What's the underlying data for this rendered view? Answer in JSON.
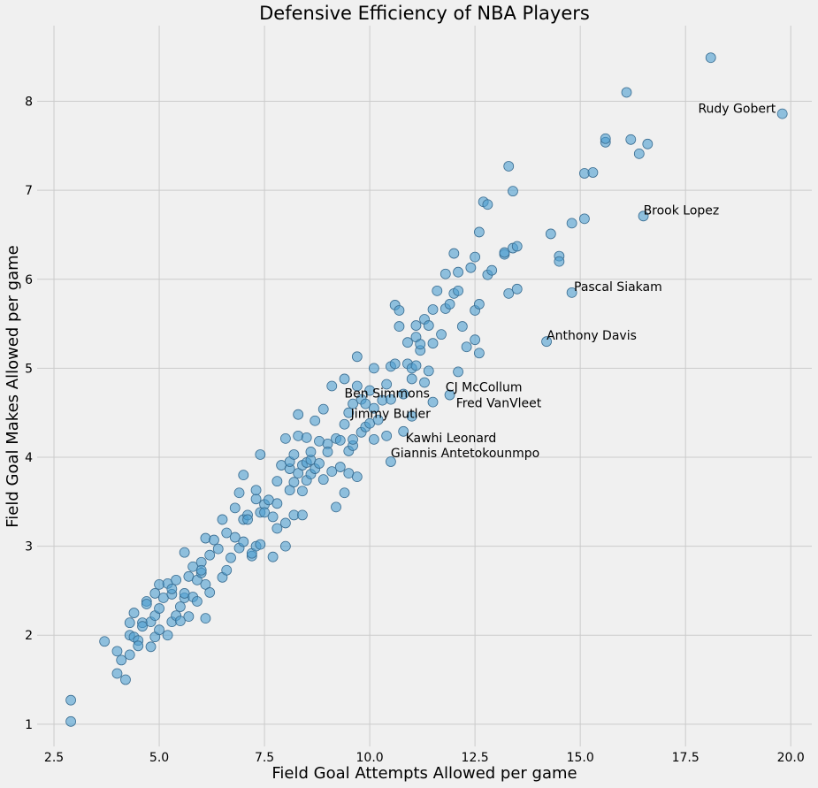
{
  "chart_data": {
    "type": "scatter",
    "title": "Defensive Efficiency of NBA Players",
    "xlabel": "Field Goal Attempts Allowed per game",
    "ylabel": "Field Goal Makes Allowed per game",
    "xlim": [
      2.1,
      20.5
    ],
    "ylim": [
      0.75,
      8.85
    ],
    "xticks": [
      2.5,
      5.0,
      7.5,
      10.0,
      12.5,
      15.0,
      17.5,
      20.0
    ],
    "xtick_labels": [
      "2.5",
      "5.0",
      "7.5",
      "10.0",
      "12.5",
      "15.0",
      "17.5",
      "20.0"
    ],
    "yticks": [
      1,
      2,
      3,
      4,
      5,
      6,
      7,
      8
    ],
    "ytick_labels": [
      "1",
      "2",
      "3",
      "4",
      "5",
      "6",
      "7",
      "8"
    ],
    "grid": true,
    "point_color": "#4c9fd0",
    "points": [
      [
        2.9,
        1.27
      ],
      [
        2.9,
        1.03
      ],
      [
        3.7,
        1.93
      ],
      [
        4.0,
        1.82
      ],
      [
        4.0,
        1.57
      ],
      [
        4.1,
        1.72
      ],
      [
        4.2,
        1.5
      ],
      [
        4.3,
        2.0
      ],
      [
        4.3,
        1.78
      ],
      [
        4.3,
        2.14
      ],
      [
        4.4,
        1.98
      ],
      [
        4.4,
        2.25
      ],
      [
        4.5,
        1.94
      ],
      [
        4.5,
        1.88
      ],
      [
        4.6,
        2.14
      ],
      [
        4.6,
        2.1
      ],
      [
        4.7,
        2.38
      ],
      [
        4.7,
        2.35
      ],
      [
        4.8,
        1.87
      ],
      [
        4.8,
        2.15
      ],
      [
        4.9,
        2.47
      ],
      [
        4.9,
        2.22
      ],
      [
        4.9,
        1.98
      ],
      [
        5.0,
        2.3
      ],
      [
        5.0,
        2.57
      ],
      [
        5.0,
        2.06
      ],
      [
        5.1,
        2.42
      ],
      [
        5.2,
        2.58
      ],
      [
        5.2,
        2.0
      ],
      [
        5.3,
        2.15
      ],
      [
        5.3,
        2.46
      ],
      [
        5.3,
        2.52
      ],
      [
        5.4,
        2.62
      ],
      [
        5.4,
        2.22
      ],
      [
        5.5,
        2.16
      ],
      [
        5.5,
        2.32
      ],
      [
        5.6,
        2.42
      ],
      [
        5.6,
        2.47
      ],
      [
        5.6,
        2.93
      ],
      [
        5.7,
        2.21
      ],
      [
        5.7,
        2.66
      ],
      [
        5.8,
        2.43
      ],
      [
        5.8,
        2.77
      ],
      [
        5.9,
        2.62
      ],
      [
        5.9,
        2.38
      ],
      [
        6.0,
        2.7
      ],
      [
        6.0,
        2.82
      ],
      [
        6.0,
        2.73
      ],
      [
        6.1,
        2.19
      ],
      [
        6.1,
        2.57
      ],
      [
        6.1,
        3.09
      ],
      [
        6.2,
        2.48
      ],
      [
        6.2,
        2.9
      ],
      [
        6.3,
        3.07
      ],
      [
        6.4,
        2.97
      ],
      [
        6.5,
        3.3
      ],
      [
        6.5,
        2.65
      ],
      [
        6.6,
        3.15
      ],
      [
        6.6,
        2.73
      ],
      [
        6.7,
        2.87
      ],
      [
        6.8,
        3.1
      ],
      [
        6.8,
        3.43
      ],
      [
        6.9,
        3.6
      ],
      [
        6.9,
        2.98
      ],
      [
        7.0,
        3.3
      ],
      [
        7.0,
        3.05
      ],
      [
        7.0,
        3.8
      ],
      [
        7.1,
        3.35
      ],
      [
        7.1,
        3.3
      ],
      [
        7.2,
        2.89
      ],
      [
        7.2,
        2.92
      ],
      [
        7.3,
        3.0
      ],
      [
        7.3,
        3.53
      ],
      [
        7.3,
        3.63
      ],
      [
        7.4,
        3.38
      ],
      [
        7.4,
        3.02
      ],
      [
        7.4,
        4.03
      ],
      [
        7.5,
        3.47
      ],
      [
        7.5,
        3.38
      ],
      [
        7.6,
        3.52
      ],
      [
        7.7,
        2.88
      ],
      [
        7.7,
        3.33
      ],
      [
        7.8,
        3.73
      ],
      [
        7.8,
        3.48
      ],
      [
        7.8,
        3.2
      ],
      [
        7.9,
        3.91
      ],
      [
        8.0,
        3.0
      ],
      [
        8.0,
        3.26
      ],
      [
        8.0,
        4.21
      ],
      [
        8.1,
        3.63
      ],
      [
        8.1,
        3.87
      ],
      [
        8.1,
        3.95
      ],
      [
        8.2,
        3.35
      ],
      [
        8.2,
        3.72
      ],
      [
        8.2,
        4.03
      ],
      [
        8.3,
        3.82
      ],
      [
        8.3,
        4.48
      ],
      [
        8.3,
        4.24
      ],
      [
        8.4,
        3.35
      ],
      [
        8.4,
        3.91
      ],
      [
        8.4,
        3.62
      ],
      [
        8.5,
        3.94
      ],
      [
        8.5,
        3.74
      ],
      [
        8.5,
        4.22
      ],
      [
        8.6,
        3.97
      ],
      [
        8.6,
        4.06
      ],
      [
        8.6,
        3.81
      ],
      [
        8.7,
        4.41
      ],
      [
        8.7,
        3.87
      ],
      [
        8.8,
        3.93
      ],
      [
        8.8,
        4.18
      ],
      [
        8.9,
        4.54
      ],
      [
        8.9,
        3.75
      ],
      [
        9.0,
        4.15
      ],
      [
        9.0,
        4.06
      ],
      [
        9.1,
        4.8
      ],
      [
        9.1,
        3.84
      ],
      [
        9.2,
        4.21
      ],
      [
        9.2,
        3.44
      ],
      [
        9.3,
        3.89
      ],
      [
        9.3,
        4.19
      ],
      [
        9.4,
        3.6
      ],
      [
        9.4,
        4.37
      ],
      [
        9.4,
        4.88
      ],
      [
        9.5,
        4.07
      ],
      [
        9.5,
        4.5
      ],
      [
        9.5,
        3.82
      ],
      [
        9.6,
        4.13
      ],
      [
        9.6,
        4.6
      ],
      [
        9.6,
        4.2
      ],
      [
        9.7,
        5.13
      ],
      [
        9.7,
        4.8
      ],
      [
        9.7,
        3.78
      ],
      [
        9.8,
        4.28
      ],
      [
        9.8,
        4.65
      ],
      [
        9.9,
        4.6
      ],
      [
        9.9,
        4.34
      ],
      [
        10.0,
        4.38
      ],
      [
        10.0,
        4.75
      ],
      [
        10.1,
        4.2
      ],
      [
        10.1,
        4.55
      ],
      [
        10.1,
        5.0
      ],
      [
        10.2,
        4.42
      ],
      [
        10.3,
        4.64
      ],
      [
        10.4,
        4.82
      ],
      [
        10.4,
        4.24
      ],
      [
        10.5,
        5.02
      ],
      [
        10.5,
        3.95
      ],
      [
        10.5,
        4.65
      ],
      [
        10.6,
        5.71
      ],
      [
        10.6,
        5.05
      ],
      [
        10.7,
        5.47
      ],
      [
        10.7,
        5.65
      ],
      [
        10.8,
        4.29
      ],
      [
        10.8,
        4.71
      ],
      [
        10.9,
        5.05
      ],
      [
        10.9,
        5.29
      ],
      [
        11.0,
        5.0
      ],
      [
        11.0,
        4.46
      ],
      [
        11.0,
        4.88
      ],
      [
        11.1,
        5.35
      ],
      [
        11.1,
        5.03
      ],
      [
        11.1,
        5.48
      ],
      [
        11.2,
        5.2
      ],
      [
        11.2,
        5.27
      ],
      [
        11.3,
        4.84
      ],
      [
        11.3,
        5.55
      ],
      [
        11.4,
        5.48
      ],
      [
        11.4,
        4.97
      ],
      [
        11.5,
        5.28
      ],
      [
        11.5,
        5.66
      ],
      [
        11.5,
        4.62
      ],
      [
        11.6,
        5.87
      ],
      [
        11.7,
        5.38
      ],
      [
        11.8,
        5.67
      ],
      [
        11.8,
        6.06
      ],
      [
        11.9,
        4.7
      ],
      [
        11.9,
        5.72
      ],
      [
        12.0,
        6.29
      ],
      [
        12.0,
        5.84
      ],
      [
        12.1,
        5.87
      ],
      [
        12.1,
        4.96
      ],
      [
        12.1,
        6.08
      ],
      [
        12.2,
        5.47
      ],
      [
        12.3,
        5.24
      ],
      [
        12.4,
        6.13
      ],
      [
        12.5,
        6.25
      ],
      [
        12.5,
        5.32
      ],
      [
        12.5,
        5.65
      ],
      [
        12.6,
        5.72
      ],
      [
        12.6,
        6.53
      ],
      [
        12.6,
        5.17
      ],
      [
        12.7,
        6.87
      ],
      [
        12.8,
        6.84
      ],
      [
        12.8,
        6.05
      ],
      [
        12.9,
        6.1
      ],
      [
        13.2,
        6.28
      ],
      [
        13.2,
        6.3
      ],
      [
        13.3,
        5.84
      ],
      [
        13.3,
        7.27
      ],
      [
        13.4,
        6.99
      ],
      [
        13.4,
        6.35
      ],
      [
        13.5,
        5.89
      ],
      [
        13.5,
        6.37
      ],
      [
        14.2,
        5.3
      ],
      [
        14.3,
        6.51
      ],
      [
        14.5,
        6.26
      ],
      [
        14.5,
        6.2
      ],
      [
        14.8,
        5.85
      ],
      [
        14.8,
        6.63
      ],
      [
        15.1,
        7.19
      ],
      [
        15.1,
        6.68
      ],
      [
        15.3,
        7.2
      ],
      [
        15.6,
        7.54
      ],
      [
        15.6,
        7.58
      ],
      [
        16.1,
        8.1
      ],
      [
        16.2,
        7.57
      ],
      [
        16.4,
        7.41
      ],
      [
        16.5,
        6.71
      ],
      [
        16.6,
        7.52
      ],
      [
        18.1,
        8.49
      ],
      [
        19.8,
        7.86
      ]
    ],
    "annotations": [
      {
        "text": "Rudy Gobert",
        "x": 17.8,
        "y": 7.85
      },
      {
        "text": "Brook Lopez",
        "x": 16.5,
        "y": 6.71
      },
      {
        "text": "Pascal Siakam",
        "x": 14.85,
        "y": 5.85
      },
      {
        "text": "Anthony Davis",
        "x": 14.2,
        "y": 5.3
      },
      {
        "text": "CJ McCollum",
        "x": 11.8,
        "y": 4.72
      },
      {
        "text": "Ben Simmons",
        "x": 9.4,
        "y": 4.65
      },
      {
        "text": "Fred VanVleet",
        "x": 12.05,
        "y": 4.54
      },
      {
        "text": "Jimmy Butler",
        "x": 9.55,
        "y": 4.42
      },
      {
        "text": "Kawhi Leonard",
        "x": 10.85,
        "y": 4.15
      },
      {
        "text": "Giannis Antetokounmpo",
        "x": 10.5,
        "y": 3.98
      }
    ]
  }
}
